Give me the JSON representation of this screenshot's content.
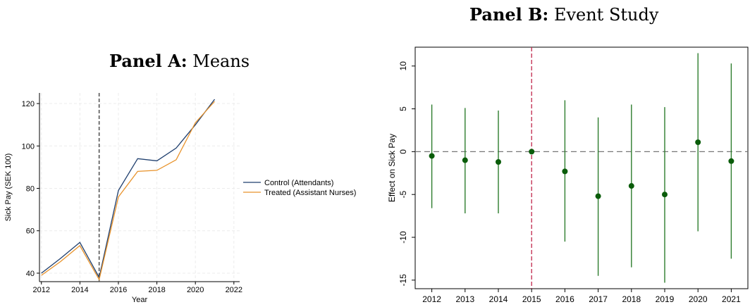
{
  "panel_a": {
    "title_bold": "Panel A:",
    "title_rest": "Means"
  },
  "panel_b": {
    "title_bold": "Panel B:",
    "title_rest": "Event Study"
  },
  "colors": {
    "control": "#1f3f6e",
    "treated": "#e8922a",
    "event_point": "#0a5c0a",
    "event_ci": "#2e7d2e",
    "treatment_line_b": "#c0264a"
  },
  "chart_data": [
    {
      "type": "line",
      "xlabel": "Year",
      "ylabel": "Sick Pay (SEK 100)",
      "x": [
        2012,
        2013,
        2014,
        2015,
        2016,
        2017,
        2018,
        2019,
        2020,
        2021
      ],
      "xlim": [
        2011.9,
        2022.3
      ],
      "ylim": [
        36,
        125
      ],
      "xticks": [
        2012,
        2014,
        2016,
        2018,
        2020,
        2022
      ],
      "yticks": [
        40,
        60,
        80,
        100,
        120
      ],
      "grid": true,
      "legend_position": "right",
      "vertical_line_at": 2015,
      "series": [
        {
          "name": "Control (Attendants)",
          "values": [
            40,
            47,
            54.5,
            38,
            79,
            94,
            93,
            99,
            110,
            122
          ]
        },
        {
          "name": "Treated (Assistant Nurses)",
          "values": [
            39,
            45.5,
            53,
            37,
            76,
            88,
            88.5,
            93.5,
            111,
            121
          ]
        }
      ]
    },
    {
      "type": "scatter",
      "xlabel": "",
      "ylabel": "Effect on Sick Pay",
      "categories": [
        "2012",
        "2013",
        "2014",
        "2015",
        "2016",
        "2017",
        "2018",
        "2019",
        "2020",
        "2021"
      ],
      "values": [
        -0.5,
        -1.0,
        -1.2,
        0,
        -2.3,
        -5.2,
        -4.0,
        -5.0,
        1.1,
        -1.1
      ],
      "ci_low": [
        -6.6,
        -7.2,
        -7.2,
        0,
        -10.5,
        -14.5,
        -13.5,
        -15.3,
        -9.3,
        -12.5
      ],
      "ci_high": [
        5.5,
        5.1,
        4.8,
        0,
        6.0,
        4.0,
        5.5,
        5.2,
        11.5,
        10.3
      ],
      "ylim": [
        -16,
        12.2
      ],
      "yticks": [
        -15,
        -10,
        -5,
        0,
        5,
        10
      ],
      "ytick_labels": [
        "-15",
        "-10",
        "-5",
        "0",
        "5",
        "10"
      ],
      "horizontal_line_at": 0,
      "vertical_line_at_category": "2015",
      "grid": false
    }
  ]
}
